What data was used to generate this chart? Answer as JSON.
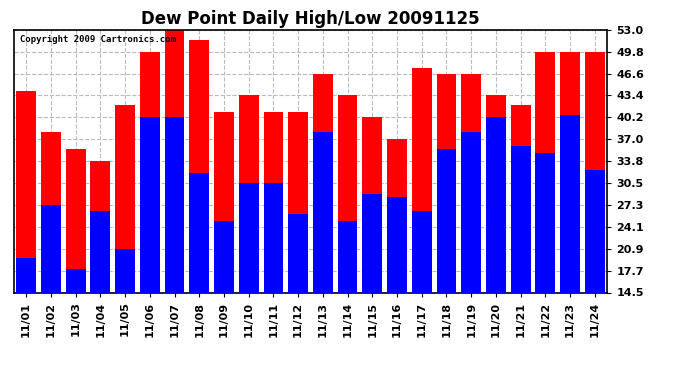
{
  "title": "Dew Point Daily High/Low 20091125",
  "copyright": "Copyright 2009 Cartronics.com",
  "dates": [
    "11/01",
    "11/02",
    "11/03",
    "11/04",
    "11/05",
    "11/06",
    "11/07",
    "11/08",
    "11/09",
    "11/10",
    "11/11",
    "11/12",
    "11/13",
    "11/14",
    "11/15",
    "11/16",
    "11/17",
    "11/18",
    "11/19",
    "11/20",
    "11/21",
    "11/22",
    "11/23",
    "11/24"
  ],
  "highs": [
    44.0,
    38.0,
    35.5,
    33.8,
    42.0,
    49.8,
    53.0,
    51.5,
    41.0,
    43.4,
    41.0,
    41.0,
    46.6,
    43.4,
    40.2,
    37.0,
    47.5,
    46.6,
    46.6,
    43.4,
    42.0,
    49.8,
    49.8,
    49.8
  ],
  "lows": [
    19.5,
    27.3,
    18.0,
    26.5,
    20.9,
    40.2,
    40.2,
    32.0,
    25.0,
    30.5,
    30.5,
    26.0,
    38.0,
    25.0,
    29.0,
    28.5,
    26.5,
    35.5,
    38.0,
    40.2,
    36.0,
    35.0,
    40.5,
    32.5
  ],
  "high_color": "#ff0000",
  "low_color": "#0000ff",
  "bg_color": "#ffffff",
  "plot_bg_color": "#ffffff",
  "yticks": [
    14.5,
    17.7,
    20.9,
    24.1,
    27.3,
    30.5,
    33.8,
    37.0,
    40.2,
    43.4,
    46.6,
    49.8,
    53.0
  ],
  "ymin": 14.5,
  "ymax": 53.0,
  "grid_color": "#bbbbbb",
  "title_fontsize": 12,
  "tick_fontsize": 8,
  "bar_width": 0.8
}
